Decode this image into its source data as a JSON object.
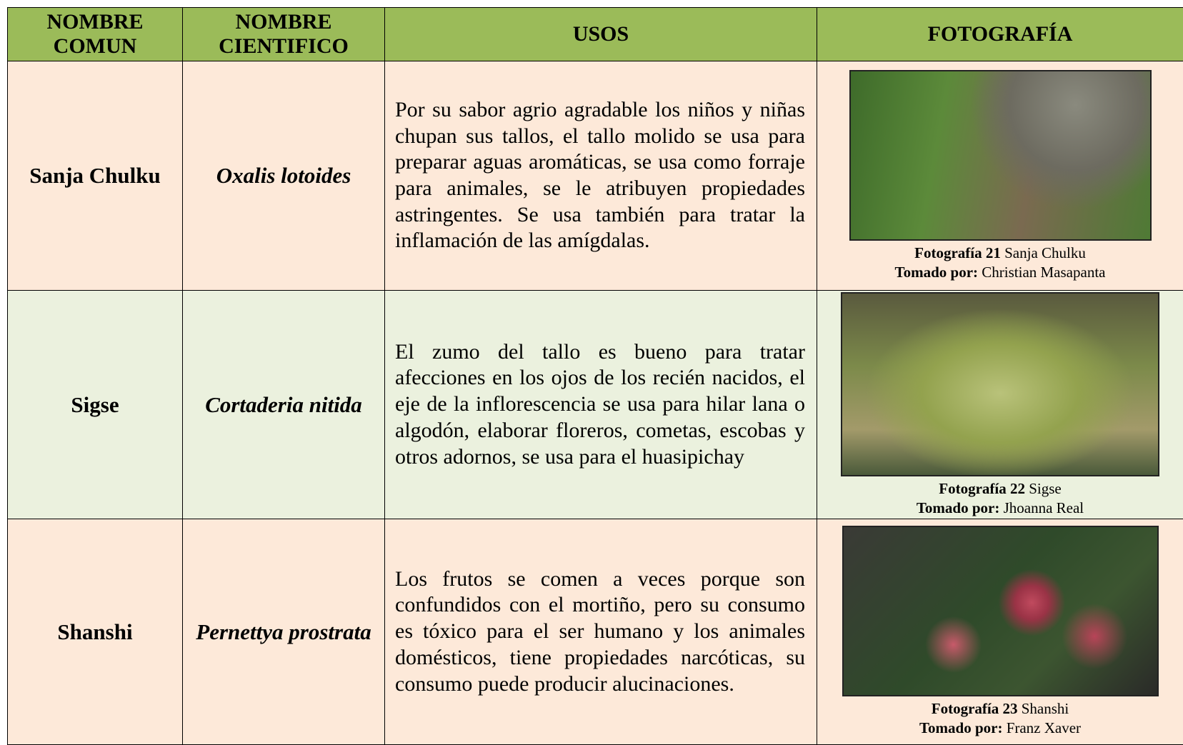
{
  "header": {
    "common": "NOMBRE COMUN",
    "scientific": "NOMBRE CIENTIFICO",
    "uses": "USOS",
    "photo": "FOTOGRAFÍA"
  },
  "rows": [
    {
      "common": "Sanja Chulku",
      "scientific": "Oxalis lotoides",
      "uses": "Por su sabor agrio agradable los niños y niñas chupan sus tallos, el tallo molido se usa para preparar aguas aromáticas, se usa como forraje para animales, se le atribuyen propiedades astringentes. Se usa también para tratar la inflamación de las amígdalas.",
      "photo_label": "Fotografía 21",
      "photo_name": "Sanja Chulku",
      "taken_label": "Tomado por:",
      "taken_by": "Christian Masapanta"
    },
    {
      "common": "Sigse",
      "scientific": "Cortaderia nitida",
      "uses": "El zumo del tallo es bueno para tratar afecciones en los ojos de los recién nacidos, el eje de la inflorescencia se usa para hilar lana o algodón, elaborar floreros, cometas, escobas y otros adornos, se usa para el huasipichay",
      "photo_label": "Fotografía 22",
      "photo_name": "Sigse",
      "taken_label": "Tomado por:",
      "taken_by": "Jhoanna Real"
    },
    {
      "common": "Shanshi",
      "scientific": "Pernettya prostrata",
      "uses": "Los frutos se comen a veces porque son confundidos con el mortiño, pero su consumo es tóxico para el ser humano y los animales domésticos, tiene propiedades narcóticas, su consumo puede producir alucinaciones.",
      "photo_label": "Fotografía 23",
      "photo_name": "Shanshi",
      "taken_label": "Tomado por:",
      "taken_by": "Franz Xaver"
    }
  ]
}
